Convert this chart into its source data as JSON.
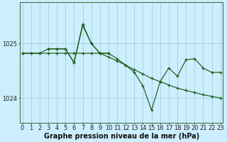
{
  "xlabel": "Graphe pression niveau de la mer (hPa)",
  "bg_color": "#cceeff",
  "grid_color": "#99cccc",
  "line_color": "#1a5c1a",
  "ytick_labels": [
    "1025",
    "1024"
  ],
  "ytick_vals": [
    1025.0,
    1024.0
  ],
  "ylim": [
    1023.55,
    1025.75
  ],
  "xlim": [
    -0.3,
    23.3
  ],
  "xticks": [
    0,
    1,
    2,
    3,
    4,
    5,
    6,
    7,
    8,
    9,
    10,
    11,
    12,
    13,
    14,
    15,
    16,
    17,
    18,
    19,
    20,
    21,
    22,
    23
  ],
  "series_A_x": [
    0,
    1,
    2,
    3,
    4,
    5,
    6,
    7,
    8,
    9,
    10,
    11,
    12,
    13,
    14,
    15,
    16,
    17,
    18,
    19,
    20,
    21,
    22,
    23
  ],
  "series_A_y": [
    1024.82,
    1024.82,
    1024.82,
    1024.82,
    1024.82,
    1024.82,
    1024.82,
    1024.82,
    1024.82,
    1024.82,
    1024.75,
    1024.68,
    1024.6,
    1024.52,
    1024.44,
    1024.36,
    1024.3,
    1024.24,
    1024.18,
    1024.14,
    1024.1,
    1024.06,
    1024.03,
    1024.0
  ],
  "series_B_x": [
    0,
    1,
    2,
    3,
    4,
    5,
    6,
    7,
    8,
    9,
    10,
    11,
    12,
    13,
    14,
    15,
    16,
    17,
    18,
    19,
    20,
    21,
    22,
    23
  ],
  "series_B_y": [
    1024.82,
    1024.82,
    1024.82,
    1024.9,
    1024.9,
    1024.9,
    1024.65,
    1025.35,
    1025.0,
    1024.82,
    1024.82,
    1024.72,
    1024.6,
    1024.47,
    1024.22,
    1023.78,
    1024.3,
    1024.55,
    1024.4,
    1024.7,
    1024.72,
    1024.55,
    1024.47,
    1024.47
  ],
  "series_C_x": [
    3,
    4,
    5,
    6,
    7,
    8,
    9,
    10
  ],
  "series_C_y": [
    1024.9,
    1024.9,
    1024.9,
    1024.65,
    1025.33,
    1025.0,
    1024.82,
    1024.82
  ],
  "xlabel_fontsize": 7,
  "tick_fontsize": 6
}
